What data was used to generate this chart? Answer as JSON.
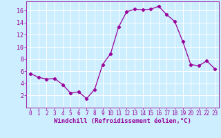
{
  "x": [
    0,
    1,
    2,
    3,
    4,
    5,
    6,
    7,
    8,
    9,
    10,
    11,
    12,
    13,
    14,
    15,
    16,
    17,
    18,
    19,
    20,
    21,
    22,
    23
  ],
  "y": [
    5.6,
    5.0,
    4.7,
    4.8,
    3.8,
    2.4,
    2.6,
    1.5,
    3.0,
    7.1,
    8.9,
    13.3,
    15.8,
    16.2,
    16.1,
    16.2,
    16.7,
    15.3,
    14.2,
    10.9,
    7.1,
    6.9,
    7.7,
    6.4
  ],
  "line_color": "#990099",
  "marker": "D",
  "marker_size": 2.2,
  "bg_color": "#cceeff",
  "grid_color": "#ffffff",
  "xlabel": "Windchill (Refroidissement éolien,°C)",
  "xlabel_color": "#990099",
  "xlabel_fontsize": 6.5,
  "xtick_fontsize": 5.5,
  "ytick_fontsize": 6.0,
  "tick_color": "#990099",
  "ylim": [
    0,
    17.5
  ],
  "yticks": [
    2,
    4,
    6,
    8,
    10,
    12,
    14,
    16
  ],
  "linewidth": 0.9
}
